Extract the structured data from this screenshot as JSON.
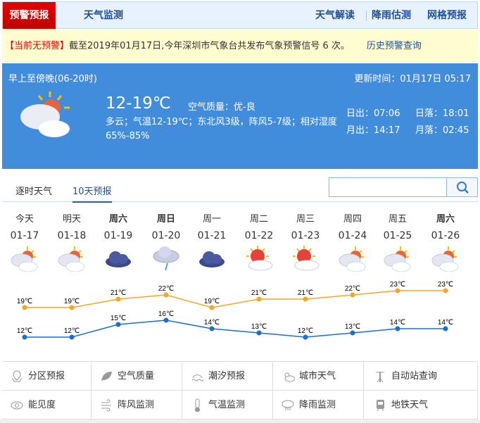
{
  "header": {
    "active_tab": "预警预报",
    "tab2": "天气监测",
    "links": [
      "天气解读",
      "降雨估测",
      "网格预报"
    ]
  },
  "alert": {
    "status": "【当前无预警】",
    "text": "截至2019年01月17日,今年深圳市气象台共发布气象预警信号 6 次。",
    "history_link": "历史预警查询"
  },
  "today": {
    "period": "早上至傍晚(06-20时)",
    "updated": "更新时间：01月17日 05:17",
    "temp": "12-19℃",
    "aqi_label": "空气质量：",
    "aqi": "优-良",
    "desc": "多云；气温12-19℃；东北风3级，阵风5-7级；相对湿度65%-85%",
    "sunrise": "日出：07:06",
    "sunset": "日落：18:01",
    "moonrise": "月出：14:17",
    "moonset": "月落：02:45",
    "icon": "partly-cloudy-icon"
  },
  "tabs": {
    "hourly": "逐时天气",
    "ten_day": "10天预报",
    "active": "10天预报"
  },
  "search": {
    "placeholder": "",
    "value": ""
  },
  "forecast": [
    {
      "day": "今天",
      "date": "01-17",
      "icon": "partly-cloudy",
      "high": "19℃",
      "low": "12℃",
      "bold": false
    },
    {
      "day": "明天",
      "date": "01-18",
      "icon": "partly-cloudy",
      "high": "19℃",
      "low": "12℃",
      "bold": false
    },
    {
      "day": "周六",
      "date": "01-19",
      "icon": "overcast",
      "high": "21℃",
      "low": "15℃",
      "bold": true
    },
    {
      "day": "周日",
      "date": "01-20",
      "icon": "light-rain",
      "high": "22℃",
      "low": "16℃",
      "bold": true
    },
    {
      "day": "周一",
      "date": "01-21",
      "icon": "overcast",
      "high": "19℃",
      "low": "14℃",
      "bold": false
    },
    {
      "day": "周二",
      "date": "01-22",
      "icon": "sunny-cloud",
      "high": "21℃",
      "low": "13℃",
      "bold": false
    },
    {
      "day": "周三",
      "date": "01-23",
      "icon": "sunny-cloud",
      "high": "21℃",
      "low": "12℃",
      "bold": false
    },
    {
      "day": "周四",
      "date": "01-24",
      "icon": "partly-cloudy",
      "high": "22℃",
      "low": "13℃",
      "bold": false
    },
    {
      "day": "周五",
      "date": "01-25",
      "icon": "partly-cloudy",
      "high": "23℃",
      "low": "14℃",
      "bold": false
    },
    {
      "day": "周六",
      "date": "01-26",
      "icon": "partly-cloudy",
      "high": "23℃",
      "low": "14℃",
      "bold": true
    }
  ],
  "chart_data": {
    "type": "line",
    "categories": [
      "01-17",
      "01-18",
      "01-19",
      "01-20",
      "01-21",
      "01-22",
      "01-23",
      "01-24",
      "01-25",
      "01-26"
    ],
    "series": [
      {
        "values": [
          19,
          19,
          21,
          22,
          19,
          21,
          21,
          22,
          23,
          23
        ],
        "color": "#f5a623"
      },
      {
        "values": [
          12,
          12,
          15,
          16,
          14,
          13,
          12,
          13,
          14,
          14
        ],
        "color": "#1a6fd0"
      }
    ],
    "unit": "℃"
  },
  "services": [
    {
      "label": "分区预报",
      "icon": "map-pin-icon"
    },
    {
      "label": "空气质量",
      "icon": "leaf-icon"
    },
    {
      "label": "潮汐预报",
      "icon": "tide-icon"
    },
    {
      "label": "城市天气",
      "icon": "sun-cloud-icon"
    },
    {
      "label": "自动站查询",
      "icon": "weather-station-icon"
    },
    {
      "label": "能见度",
      "icon": "eye-icon"
    },
    {
      "label": "阵风监测",
      "icon": "wind-icon"
    },
    {
      "label": "气温监测",
      "icon": "thermometer-icon"
    },
    {
      "label": "降雨监测",
      "icon": "rain-cloud-icon"
    },
    {
      "label": "地铁天气",
      "icon": "metro-icon"
    }
  ]
}
